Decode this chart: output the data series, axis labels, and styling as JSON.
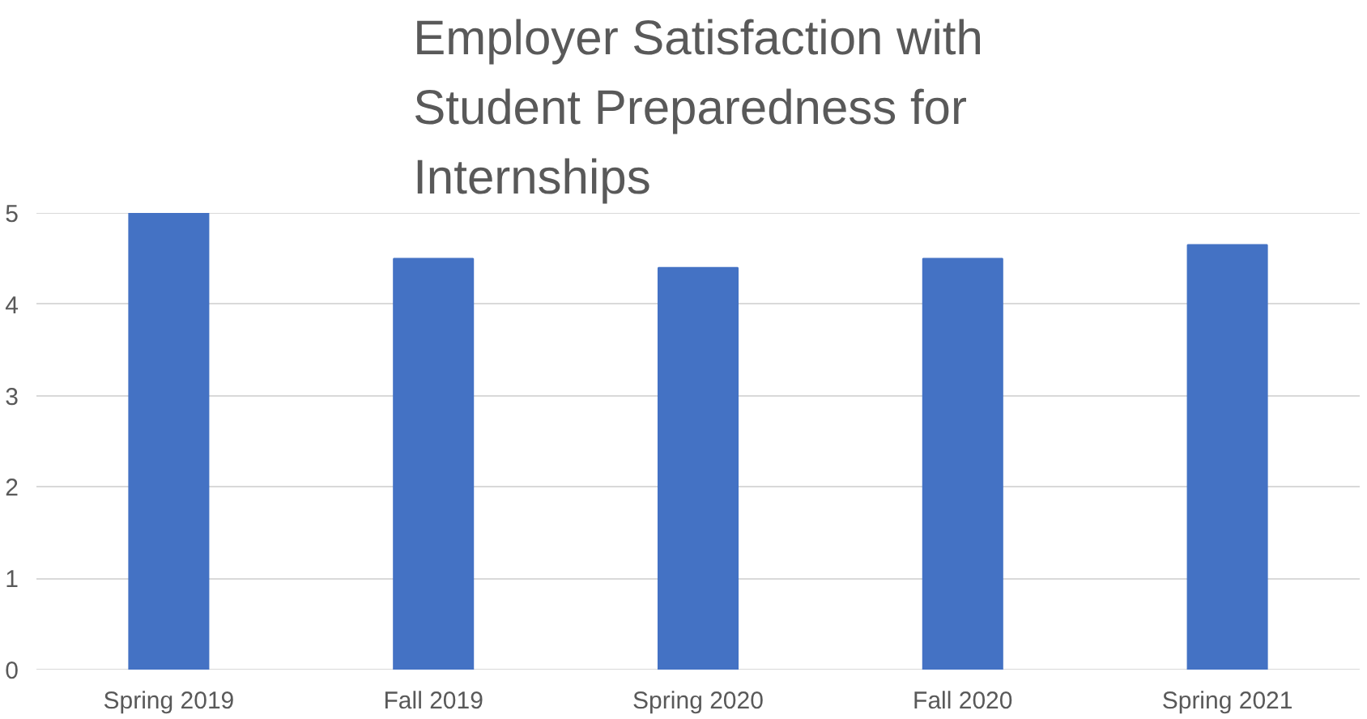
{
  "chart_data": {
    "type": "bar",
    "title": "Employer Satisfaction with\nStudent Preparedness for\nInternships",
    "categories": [
      "Spring 2019",
      "Fall 2019",
      "Spring 2020",
      "Fall 2020",
      "Spring 2021"
    ],
    "values": [
      5.0,
      4.5,
      4.4,
      4.5,
      4.65
    ],
    "color": "#4472c4",
    "ylim": [
      0,
      5
    ],
    "yticks": [
      0,
      1,
      2,
      3,
      4,
      5
    ],
    "grid": "y"
  }
}
